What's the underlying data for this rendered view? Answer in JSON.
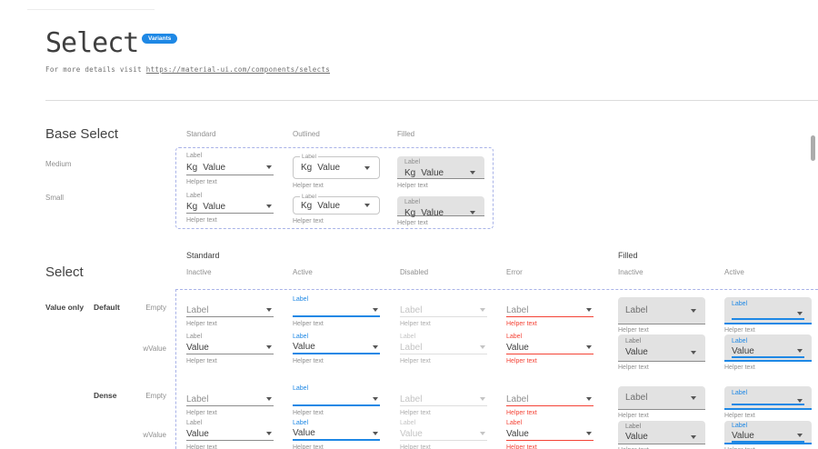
{
  "header": {
    "title": "Select",
    "badge": "Variants",
    "subtitle_prefix": "For more details visit ",
    "subtitle_link": "https://material-ui.com/components/selects"
  },
  "colors": {
    "accent_blue": "#1E88E5",
    "error_red": "#F44336",
    "filled_bg": "#E2E2E2",
    "dashed_border": "#A9B3E8"
  },
  "base_section": {
    "heading": "Base Select",
    "column_headers": [
      "Standard",
      "Outlined",
      "Filled"
    ],
    "row_labels": [
      "Medium",
      "Small"
    ],
    "component": {
      "label": "Label",
      "adornment": "Kg",
      "value": "Value",
      "helper": "Helper text"
    },
    "cells": [
      {
        "variant": "standard",
        "size": "medium"
      },
      {
        "variant": "outlined",
        "size": "medium"
      },
      {
        "variant": "filled",
        "size": "medium"
      },
      {
        "variant": "standard",
        "size": "small"
      },
      {
        "variant": "outlined",
        "size": "small"
      },
      {
        "variant": "filled",
        "size": "small"
      }
    ]
  },
  "select_section": {
    "heading": "Select",
    "groups": [
      {
        "label": "Standard",
        "states": [
          "Inactive",
          "Active",
          "Disabled",
          "Error"
        ]
      },
      {
        "label": "Filled",
        "states": [
          "Inactive",
          "Active"
        ]
      }
    ],
    "row_dim": "Value only",
    "row_groups": [
      {
        "label": "Default",
        "rows": [
          {
            "label": "Empty"
          },
          {
            "label": "wValue"
          }
        ]
      },
      {
        "label": "Dense",
        "rows": [
          {
            "label": "Empty"
          },
          {
            "label": "wValue"
          }
        ]
      }
    ],
    "helper": "Helper text",
    "cells": [
      {
        "variant": "standard",
        "state": "inactive",
        "mode": "empty",
        "placeholder": "Label"
      },
      {
        "variant": "standard",
        "state": "active",
        "mode": "empty",
        "label": "Label",
        "placeholder": ""
      },
      {
        "variant": "standard",
        "state": "disabled",
        "mode": "empty",
        "placeholder": "Label"
      },
      {
        "variant": "standard",
        "state": "error",
        "mode": "empty",
        "placeholder": "Label"
      },
      {
        "variant": "filled",
        "state": "inactive",
        "mode": "empty",
        "placeholder": "Label"
      },
      {
        "variant": "filled",
        "state": "active",
        "mode": "empty",
        "label": "Label",
        "placeholder": ""
      },
      {
        "variant": "standard",
        "state": "inactive",
        "mode": "value",
        "label": "Label",
        "value": "Value"
      },
      {
        "variant": "standard",
        "state": "active",
        "mode": "value",
        "label": "Label",
        "value": "Value"
      },
      {
        "variant": "standard",
        "state": "disabled",
        "mode": "value",
        "label": "Label",
        "value": "Label"
      },
      {
        "variant": "standard",
        "state": "error",
        "mode": "value",
        "label": "Label",
        "value": "Value"
      },
      {
        "variant": "filled",
        "state": "inactive",
        "mode": "value",
        "label": "Label",
        "value": "Value"
      },
      {
        "variant": "filled",
        "state": "active",
        "mode": "value",
        "label": "Label",
        "value": "Value"
      },
      {
        "variant": "standard",
        "state": "inactive",
        "mode": "empty",
        "placeholder": "Label",
        "dense": true
      },
      {
        "variant": "standard",
        "state": "active",
        "mode": "empty",
        "label": "Label",
        "placeholder": "",
        "dense": true
      },
      {
        "variant": "standard",
        "state": "disabled",
        "mode": "empty",
        "placeholder": "Label",
        "dense": true
      },
      {
        "variant": "standard",
        "state": "error",
        "mode": "empty",
        "placeholder": "Label",
        "dense": true
      },
      {
        "variant": "filled",
        "state": "inactive",
        "mode": "empty",
        "placeholder": "Label",
        "dense": true
      },
      {
        "variant": "filled",
        "state": "active",
        "mode": "empty",
        "label": "Label",
        "placeholder": "",
        "dense": true
      },
      {
        "variant": "standard",
        "state": "inactive",
        "mode": "value",
        "label": "Label",
        "value": "Value",
        "dense": true
      },
      {
        "variant": "standard",
        "state": "active",
        "mode": "value",
        "label": "Label",
        "value": "Value",
        "dense": true
      },
      {
        "variant": "standard",
        "state": "disabled",
        "mode": "value",
        "label": "Label",
        "value": "Value",
        "dense": true
      },
      {
        "variant": "standard",
        "state": "error",
        "mode": "value",
        "label": "Label",
        "value": "Value",
        "dense": true
      },
      {
        "variant": "filled",
        "state": "inactive",
        "mode": "value",
        "label": "Label",
        "value": "Value",
        "dense": true
      },
      {
        "variant": "filled",
        "state": "active",
        "mode": "value",
        "label": "Label",
        "value": "Value",
        "dense": true
      }
    ]
  }
}
